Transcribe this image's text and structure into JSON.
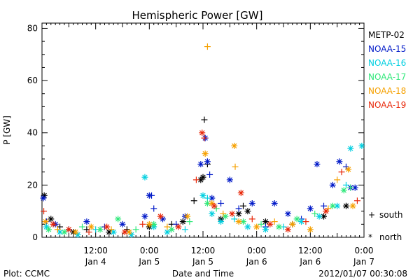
{
  "footer": {
    "plot_credit": "Plot: CCMC",
    "timestamp": "2012/01/07 00:30:08"
  },
  "marker_key": [
    {
      "symbol": "+",
      "label": "south"
    },
    {
      "symbol": "*",
      "label": "north"
    }
  ],
  "chart_data": {
    "type": "scatter",
    "title": "Hemispheric Power [GW]",
    "xlabel": "Date and Time",
    "ylabel": "P [GW]",
    "ylim": [
      0,
      82
    ],
    "xlim_hours": [
      0,
      72
    ],
    "y_ticks": [
      0,
      20,
      40,
      60,
      80
    ],
    "x_ticks": [
      {
        "hour": 12,
        "top": "12:00",
        "bottom": "Jan 4"
      },
      {
        "hour": 24,
        "top": "0:00",
        "bottom": "Jan 5"
      },
      {
        "hour": 36,
        "top": "12:00",
        "bottom": "Jan 5"
      },
      {
        "hour": 48,
        "top": "0:00",
        "bottom": "Jan 6"
      },
      {
        "hour": 60,
        "top": "12:00",
        "bottom": "Jan 6"
      },
      {
        "hour": 72,
        "top": "0:00",
        "bottom": "Jan 7"
      }
    ],
    "x_unit_note": "x values are hours since 00:00 Jan 4",
    "legend_position": "right",
    "series": [
      {
        "name": "METP-02",
        "color": "#000000",
        "points": [
          {
            "x": 0.5,
            "y": 16,
            "h": "north"
          },
          {
            "x": 2.0,
            "y": 7,
            "h": "north"
          },
          {
            "x": 4.0,
            "y": 4,
            "h": "south"
          },
          {
            "x": 7.0,
            "y": 2,
            "h": "north"
          },
          {
            "x": 10.0,
            "y": 3,
            "h": "south"
          },
          {
            "x": 15.0,
            "y": 2,
            "h": "north"
          },
          {
            "x": 19.0,
            "y": 3,
            "h": "south"
          },
          {
            "x": 24.0,
            "y": 4,
            "h": "north"
          },
          {
            "x": 29.0,
            "y": 5,
            "h": "south"
          },
          {
            "x": 31.5,
            "y": 6,
            "h": "north"
          },
          {
            "x": 34.0,
            "y": 14,
            "h": "south"
          },
          {
            "x": 35.5,
            "y": 22,
            "h": "north"
          },
          {
            "x": 36.0,
            "y": 23,
            "h": "north"
          },
          {
            "x": 36.3,
            "y": 45,
            "h": "south"
          },
          {
            "x": 37.0,
            "y": 28,
            "h": "south"
          },
          {
            "x": 40.0,
            "y": 7,
            "h": "north"
          },
          {
            "x": 44.0,
            "y": 9,
            "h": "north"
          },
          {
            "x": 45.0,
            "y": 12,
            "h": "south"
          },
          {
            "x": 46.0,
            "y": 10,
            "h": "north"
          },
          {
            "x": 50.0,
            "y": 6,
            "h": "north"
          },
          {
            "x": 56.0,
            "y": 5,
            "h": "south"
          },
          {
            "x": 63.0,
            "y": 8,
            "h": "north"
          },
          {
            "x": 68.0,
            "y": 12,
            "h": "north"
          }
        ]
      },
      {
        "name": "NOAA-15",
        "color": "#0019c8",
        "points": [
          {
            "x": 0.3,
            "y": 15,
            "h": "north"
          },
          {
            "x": 1.0,
            "y": 6,
            "h": "south"
          },
          {
            "x": 3.0,
            "y": 5,
            "h": "north"
          },
          {
            "x": 6.0,
            "y": 3,
            "h": "south"
          },
          {
            "x": 10.0,
            "y": 6,
            "h": "north"
          },
          {
            "x": 14.0,
            "y": 4,
            "h": "south"
          },
          {
            "x": 18.0,
            "y": 5,
            "h": "north"
          },
          {
            "x": 23.0,
            "y": 8,
            "h": "north"
          },
          {
            "x": 24.0,
            "y": 16,
            "h": "north"
          },
          {
            "x": 24.5,
            "y": 16,
            "h": "south"
          },
          {
            "x": 25.0,
            "y": 11,
            "h": "south"
          },
          {
            "x": 27.0,
            "y": 7,
            "h": "north"
          },
          {
            "x": 30.0,
            "y": 5,
            "h": "south"
          },
          {
            "x": 32.0,
            "y": 8,
            "h": "north"
          },
          {
            "x": 35.5,
            "y": 28,
            "h": "north"
          },
          {
            "x": 36.5,
            "y": 38,
            "h": "north"
          },
          {
            "x": 37.0,
            "y": 29,
            "h": "north"
          },
          {
            "x": 37.5,
            "y": 24,
            "h": "south"
          },
          {
            "x": 38.0,
            "y": 15,
            "h": "north"
          },
          {
            "x": 40.0,
            "y": 13,
            "h": "south"
          },
          {
            "x": 42.0,
            "y": 22,
            "h": "north"
          },
          {
            "x": 44.0,
            "y": 11,
            "h": "south"
          },
          {
            "x": 47.0,
            "y": 13,
            "h": "north"
          },
          {
            "x": 50.0,
            "y": 4,
            "h": "south"
          },
          {
            "x": 52.0,
            "y": 13,
            "h": "north"
          },
          {
            "x": 55.0,
            "y": 9,
            "h": "north"
          },
          {
            "x": 58.0,
            "y": 7,
            "h": "south"
          },
          {
            "x": 60.0,
            "y": 11,
            "h": "north"
          },
          {
            "x": 61.5,
            "y": 28,
            "h": "north"
          },
          {
            "x": 63.0,
            "y": 12,
            "h": "south"
          },
          {
            "x": 65.0,
            "y": 20,
            "h": "north"
          },
          {
            "x": 66.5,
            "y": 29,
            "h": "north"
          },
          {
            "x": 68.0,
            "y": 27,
            "h": "south"
          },
          {
            "x": 69.0,
            "y": 19,
            "h": "north"
          },
          {
            "x": 70.0,
            "y": 19,
            "h": "north"
          }
        ]
      },
      {
        "name": "NOAA-16",
        "color": "#00cfe0",
        "points": [
          {
            "x": 1.0,
            "y": 4,
            "h": "north"
          },
          {
            "x": 4.0,
            "y": 2,
            "h": "north"
          },
          {
            "x": 8.0,
            "y": 1,
            "h": "north"
          },
          {
            "x": 12.0,
            "y": 3,
            "h": "south"
          },
          {
            "x": 16.0,
            "y": 2,
            "h": "north"
          },
          {
            "x": 20.0,
            "y": 1,
            "h": "north"
          },
          {
            "x": 23.0,
            "y": 23,
            "h": "north"
          },
          {
            "x": 25.0,
            "y": 4,
            "h": "north"
          },
          {
            "x": 28.0,
            "y": 2,
            "h": "north"
          },
          {
            "x": 32.0,
            "y": 3,
            "h": "south"
          },
          {
            "x": 36.0,
            "y": 16,
            "h": "north"
          },
          {
            "x": 37.0,
            "y": 15,
            "h": "south"
          },
          {
            "x": 38.0,
            "y": 9,
            "h": "north"
          },
          {
            "x": 40.0,
            "y": 6,
            "h": "north"
          },
          {
            "x": 43.0,
            "y": 7,
            "h": "south"
          },
          {
            "x": 46.0,
            "y": 4,
            "h": "north"
          },
          {
            "x": 50.0,
            "y": 3,
            "h": "north"
          },
          {
            "x": 54.0,
            "y": 4,
            "h": "south"
          },
          {
            "x": 58.0,
            "y": 6,
            "h": "north"
          },
          {
            "x": 62.0,
            "y": 8,
            "h": "north"
          },
          {
            "x": 66.0,
            "y": 12,
            "h": "north"
          },
          {
            "x": 68.0,
            "y": 20,
            "h": "south"
          },
          {
            "x": 69.0,
            "y": 34,
            "h": "north"
          },
          {
            "x": 71.5,
            "y": 35,
            "h": "north"
          }
        ]
      },
      {
        "name": "NOAA-17",
        "color": "#2fe87a",
        "points": [
          {
            "x": 1.5,
            "y": 3,
            "h": "north"
          },
          {
            "x": 5.0,
            "y": 2,
            "h": "north"
          },
          {
            "x": 9.0,
            "y": 4,
            "h": "south"
          },
          {
            "x": 13.0,
            "y": 3,
            "h": "north"
          },
          {
            "x": 17.0,
            "y": 7,
            "h": "north"
          },
          {
            "x": 21.0,
            "y": 3,
            "h": "south"
          },
          {
            "x": 25.0,
            "y": 5,
            "h": "north"
          },
          {
            "x": 29.0,
            "y": 3,
            "h": "north"
          },
          {
            "x": 33.0,
            "y": 6,
            "h": "south"
          },
          {
            "x": 37.0,
            "y": 13,
            "h": "north"
          },
          {
            "x": 39.0,
            "y": 11,
            "h": "south"
          },
          {
            "x": 41.0,
            "y": 8,
            "h": "north"
          },
          {
            "x": 45.0,
            "y": 6,
            "h": "north"
          },
          {
            "x": 49.0,
            "y": 5,
            "h": "south"
          },
          {
            "x": 53.0,
            "y": 4,
            "h": "north"
          },
          {
            "x": 57.0,
            "y": 7,
            "h": "north"
          },
          {
            "x": 61.0,
            "y": 9,
            "h": "south"
          },
          {
            "x": 65.0,
            "y": 12,
            "h": "north"
          },
          {
            "x": 67.5,
            "y": 18,
            "h": "north"
          },
          {
            "x": 69.0,
            "y": 19,
            "h": "south"
          }
        ]
      },
      {
        "name": "NOAA-18",
        "color": "#f5a000",
        "points": [
          {
            "x": 0.8,
            "y": 6,
            "h": "north"
          },
          {
            "x": 3.5,
            "y": 3,
            "h": "south"
          },
          {
            "x": 7.5,
            "y": 2,
            "h": "north"
          },
          {
            "x": 11.0,
            "y": 4,
            "h": "north"
          },
          {
            "x": 15.5,
            "y": 3,
            "h": "south"
          },
          {
            "x": 19.5,
            "y": 2,
            "h": "north"
          },
          {
            "x": 24.0,
            "y": 5,
            "h": "north"
          },
          {
            "x": 28.0,
            "y": 4,
            "h": "south"
          },
          {
            "x": 32.5,
            "y": 8,
            "h": "north"
          },
          {
            "x": 36.5,
            "y": 32,
            "h": "north"
          },
          {
            "x": 37.0,
            "y": 73,
            "h": "south"
          },
          {
            "x": 38.0,
            "y": 13,
            "h": "north"
          },
          {
            "x": 40.5,
            "y": 9,
            "h": "south"
          },
          {
            "x": 43.0,
            "y": 35,
            "h": "north"
          },
          {
            "x": 43.2,
            "y": 27,
            "h": "south"
          },
          {
            "x": 44.0,
            "y": 6,
            "h": "north"
          },
          {
            "x": 48.0,
            "y": 4,
            "h": "north"
          },
          {
            "x": 52.0,
            "y": 6,
            "h": "south"
          },
          {
            "x": 56.0,
            "y": 5,
            "h": "north"
          },
          {
            "x": 60.0,
            "y": 3,
            "h": "north"
          },
          {
            "x": 64.0,
            "y": 11,
            "h": "south"
          },
          {
            "x": 66.0,
            "y": 22,
            "h": "south"
          },
          {
            "x": 68.5,
            "y": 26,
            "h": "north"
          },
          {
            "x": 69.5,
            "y": 12,
            "h": "north"
          }
        ]
      },
      {
        "name": "NOAA-19",
        "color": "#e8280a",
        "points": [
          {
            "x": 0.4,
            "y": 10,
            "h": "south"
          },
          {
            "x": 2.5,
            "y": 5,
            "h": "north"
          },
          {
            "x": 6.0,
            "y": 3,
            "h": "north"
          },
          {
            "x": 10.5,
            "y": 2,
            "h": "south"
          },
          {
            "x": 14.5,
            "y": 4,
            "h": "north"
          },
          {
            "x": 18.5,
            "y": 2,
            "h": "north"
          },
          {
            "x": 22.5,
            "y": 5,
            "h": "south"
          },
          {
            "x": 26.5,
            "y": 8,
            "h": "north"
          },
          {
            "x": 30.5,
            "y": 4,
            "h": "north"
          },
          {
            "x": 34.5,
            "y": 22,
            "h": "south"
          },
          {
            "x": 35.8,
            "y": 40,
            "h": "north"
          },
          {
            "x": 36.3,
            "y": 38,
            "h": "south"
          },
          {
            "x": 38.5,
            "y": 12,
            "h": "north"
          },
          {
            "x": 42.5,
            "y": 9,
            "h": "north"
          },
          {
            "x": 44.5,
            "y": 17,
            "h": "north"
          },
          {
            "x": 47.0,
            "y": 7,
            "h": "south"
          },
          {
            "x": 51.0,
            "y": 5,
            "h": "north"
          },
          {
            "x": 55.0,
            "y": 3,
            "h": "north"
          },
          {
            "x": 59.0,
            "y": 6,
            "h": "south"
          },
          {
            "x": 63.5,
            "y": 10,
            "h": "north"
          },
          {
            "x": 67.0,
            "y": 25,
            "h": "south"
          },
          {
            "x": 70.5,
            "y": 14,
            "h": "south"
          }
        ]
      }
    ]
  }
}
